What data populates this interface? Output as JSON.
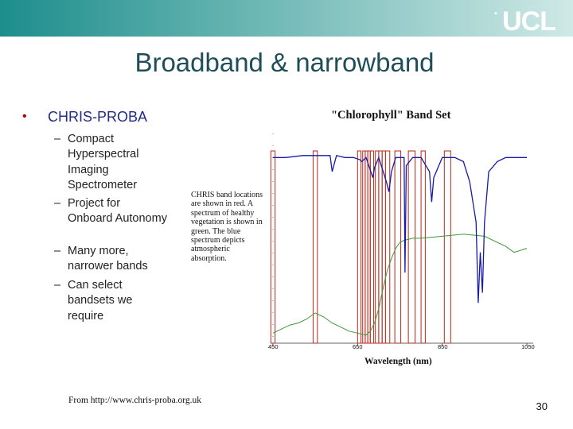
{
  "header": {
    "logo_text": "UCL",
    "logo_mark": "•"
  },
  "slide": {
    "title": "Broadband & narrowband",
    "bullet": "CHRIS-PROBA",
    "subitems": [
      {
        "dash": "–",
        "text": "Compact Hyperspectral Imaging Spectrometer"
      },
      {
        "dash": "–",
        "text": "Project for Onboard Autonomy"
      },
      {
        "dash": "–",
        "text": "Many more, narrower bands"
      },
      {
        "dash": "–",
        "text": "Can select bandsets we require"
      }
    ],
    "source": "From http://www.chris-proba.org.uk",
    "page_number": "30"
  },
  "colors": {
    "banner_start": "#1c8e8c",
    "banner_end": "#cfe9e6",
    "title": "#1f4e5a",
    "bullet_text": "#222b86",
    "bands": "#c0392b",
    "vegetation": "#3a9a3a",
    "atmosphere": "#1a1aa8"
  },
  "chart_data": {
    "type": "line",
    "title": "\"Chlorophyll\" Band Set",
    "xlabel": "Wavelength (nm)",
    "ylabel": "",
    "x_ticks": [
      "450",
      "650",
      "850",
      "1050"
    ],
    "xlim": [
      450,
      1050
    ],
    "caption": "CHRIS band locations are shown in red. A spectrum of healthy vegetation is shown in green. The blue spectrum depicts atmospheric absorption.",
    "bands": [
      [
        445,
        455
      ],
      [
        545,
        555
      ],
      [
        650,
        658
      ],
      [
        662,
        668
      ],
      [
        668,
        674
      ],
      [
        674,
        680
      ],
      [
        680,
        688
      ],
      [
        692,
        700
      ],
      [
        700,
        708
      ],
      [
        708,
        716
      ],
      [
        716,
        726
      ],
      [
        738,
        752
      ],
      [
        770,
        786
      ],
      [
        800,
        810
      ],
      [
        855,
        870
      ]
    ],
    "series": [
      {
        "color": "green",
        "x": [
          450,
          470,
          490,
          510,
          530,
          550,
          570,
          590,
          610,
          630,
          650,
          670,
          680,
          690,
          700,
          710,
          720,
          730,
          740,
          750,
          760,
          780,
          800,
          850,
          900,
          950,
          1000,
          1020,
          1050
        ],
        "y": [
          0.05,
          0.07,
          0.09,
          0.1,
          0.12,
          0.15,
          0.13,
          0.1,
          0.08,
          0.06,
          0.05,
          0.04,
          0.06,
          0.1,
          0.17,
          0.27,
          0.36,
          0.42,
          0.47,
          0.5,
          0.51,
          0.52,
          0.52,
          0.53,
          0.54,
          0.53,
          0.48,
          0.45,
          0.47
        ]
      },
      {
        "color": "blue",
        "x": [
          450,
          480,
          520,
          550,
          585,
          590,
          600,
          620,
          640,
          655,
          660,
          670,
          686,
          690,
          700,
          718,
          724,
          730,
          740,
          760,
          762,
          765,
          780,
          800,
          820,
          825,
          830,
          850,
          880,
          900,
          915,
          930,
          935,
          940,
          945,
          950,
          960,
          980,
          1000,
          1050
        ],
        "y": [
          0.92,
          0.92,
          0.93,
          0.93,
          0.93,
          0.85,
          0.93,
          0.92,
          0.92,
          0.91,
          0.9,
          0.92,
          0.82,
          0.87,
          0.92,
          0.8,
          0.75,
          0.85,
          0.92,
          0.92,
          0.35,
          0.88,
          0.92,
          0.92,
          0.85,
          0.7,
          0.82,
          0.92,
          0.92,
          0.9,
          0.8,
          0.6,
          0.2,
          0.45,
          0.25,
          0.6,
          0.85,
          0.9,
          0.92,
          0.92
        ]
      }
    ]
  }
}
